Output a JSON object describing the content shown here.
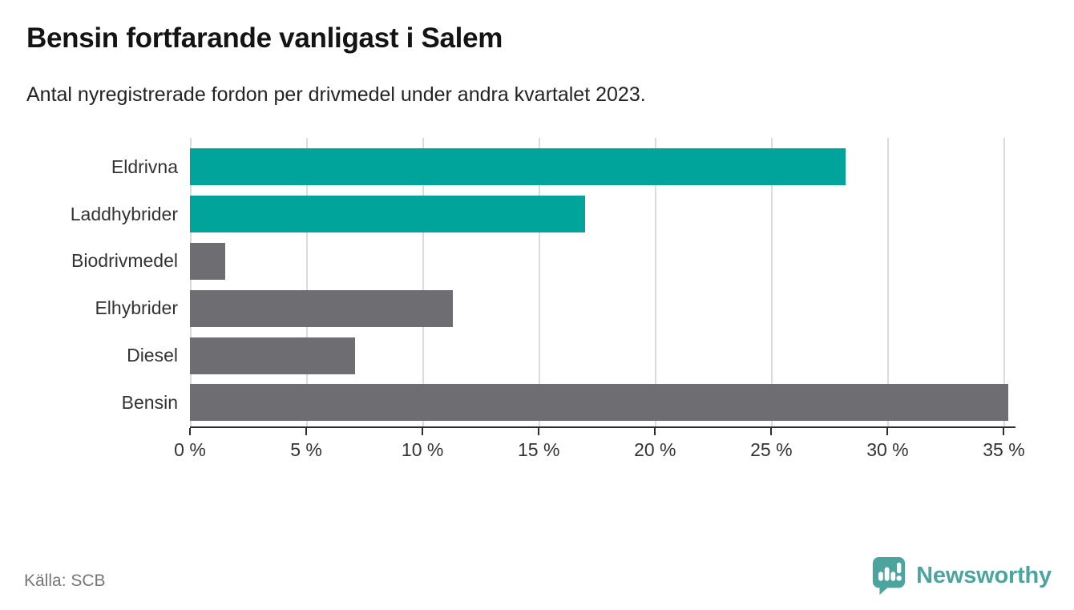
{
  "header": {
    "title": "Bensin fortfarande vanligast i Salem",
    "subtitle": "Antal nyregistrerade fordon per drivmedel under andra kvartalet 2023."
  },
  "chart_data": {
    "type": "bar",
    "orientation": "horizontal",
    "title": "Bensin fortfarande vanligast i Salem",
    "subtitle": "Antal nyregistrerade fordon per drivmedel under andra kvartalet 2023.",
    "categories": [
      "Eldrivna",
      "Laddhybrider",
      "Biodrivmedel",
      "Elhybrider",
      "Diesel",
      "Bensin"
    ],
    "values": [
      28.2,
      17.0,
      1.5,
      11.3,
      7.1,
      35.2
    ],
    "unit": "%",
    "bar_colors": [
      "#00a49b",
      "#00a49b",
      "#6d6d72",
      "#6d6d72",
      "#6d6d72",
      "#6d6d72"
    ],
    "xlim": [
      0,
      35.5
    ],
    "x_ticks": [
      0,
      5,
      10,
      15,
      20,
      25,
      30,
      35
    ],
    "x_tick_labels": [
      "0 %",
      "5 %",
      "10 %",
      "15 %",
      "20 %",
      "25 %",
      "30 %",
      "35 %"
    ],
    "grid": "vertical",
    "legend": "none",
    "ylabel": "",
    "xlabel": ""
  },
  "footer": {
    "source": "Källa: SCB",
    "brand": "Newsworthy"
  },
  "colors": {
    "highlight_teal": "#00a49b",
    "bar_gray": "#6d6d72",
    "gridline": "#dbdbdb",
    "axis": "#2e2e2e",
    "brand_teal": "#4ba49d",
    "source_gray": "#767676"
  }
}
